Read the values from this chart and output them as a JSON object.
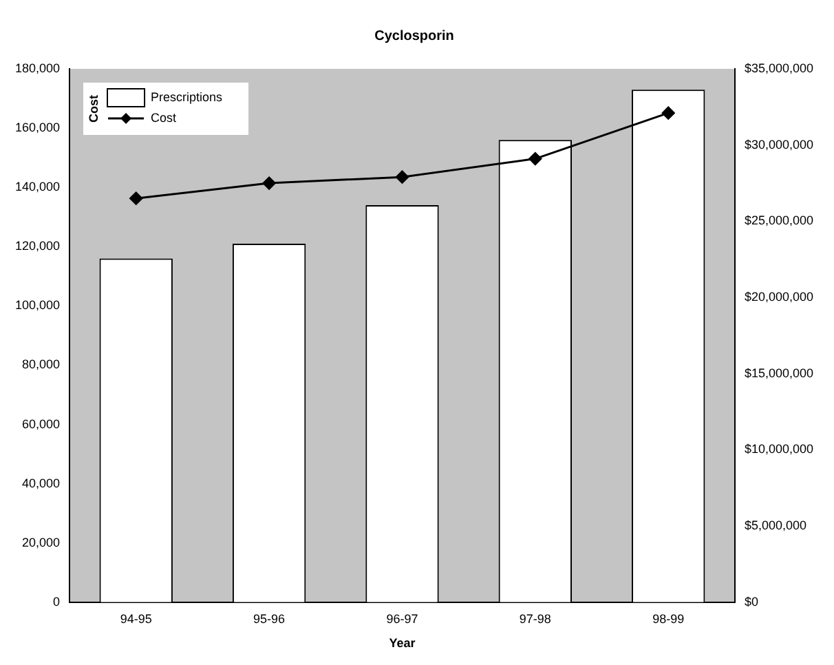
{
  "chart_data": {
    "type": "bar",
    "title": "Cyclosporin",
    "xlabel": "Year",
    "legend_title": "Cost",
    "categories": [
      "94-95",
      "95-96",
      "96-97",
      "97-98",
      "98-99"
    ],
    "series": [
      {
        "name": "Prescriptions",
        "color": "#ffffff",
        "values": [
          116000,
          121000,
          134000,
          156000,
          173000
        ]
      },
      {
        "name": "Cost",
        "type": "line",
        "axis": "y2",
        "color": "#000000",
        "marker": "diamond",
        "values": [
          26500000,
          27500000,
          27900000,
          29100000,
          32100000
        ]
      }
    ],
    "ylim": [
      0,
      180000
    ],
    "yticks": [
      {
        "value": 0,
        "label": "0"
      },
      {
        "value": 20000,
        "label": "20,000"
      },
      {
        "value": 40000,
        "label": "40,000"
      },
      {
        "value": 60000,
        "label": "60,000"
      },
      {
        "value": 80000,
        "label": "80,000"
      },
      {
        "value": 100000,
        "label": "100,000"
      },
      {
        "value": 120000,
        "label": "120,000"
      },
      {
        "value": 140000,
        "label": "140,000"
      },
      {
        "value": 160000,
        "label": "160,000"
      },
      {
        "value": 180000,
        "label": "180,000"
      }
    ],
    "y2lim": [
      0,
      35000000
    ],
    "y2ticks": [
      {
        "value": 0,
        "label": "$0"
      },
      {
        "value": 5000000,
        "label": "$5,000,000"
      },
      {
        "value": 10000000,
        "label": "$10,000,000"
      },
      {
        "value": 15000000,
        "label": "$15,000,000"
      },
      {
        "value": 20000000,
        "label": "$20,000,000"
      },
      {
        "value": 25000000,
        "label": "$25,000,000"
      },
      {
        "value": 30000000,
        "label": "$30,000,000"
      },
      {
        "value": 35000000,
        "label": "$35,000,000"
      }
    ],
    "legend": "top left",
    "grid": false
  }
}
